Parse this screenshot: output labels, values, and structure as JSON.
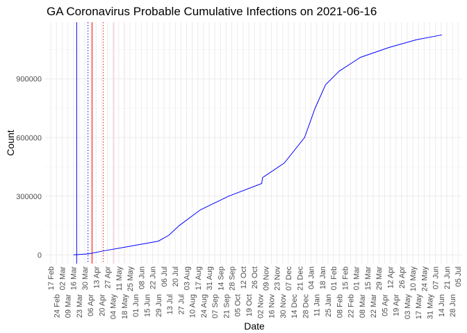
{
  "chart_data": {
    "type": "line",
    "title": "GA Coronavirus Probable Cumulative Infections on 2021-06-16",
    "xlabel": "Date",
    "ylabel": "Count",
    "xlim": [
      "2020-02-10",
      "2021-07-10"
    ],
    "ylim": [
      -45000,
      1190000
    ],
    "yticks": [
      0,
      300000,
      600000,
      900000
    ],
    "ytick_labels": [
      "0",
      "300000",
      "600000",
      "900000"
    ],
    "grid": true,
    "xtick_start": "2020-02-17",
    "xtick_count": 73,
    "xtick_interval_days": 7,
    "series": [
      {
        "name": "cumulative",
        "color": "#0000ff",
        "points": [
          [
            "2020-03-16",
            0
          ],
          [
            "2020-04-04",
            5000
          ],
          [
            "2020-04-22",
            20000
          ],
          [
            "2020-05-17",
            38000
          ],
          [
            "2020-06-29",
            70000
          ],
          [
            "2020-07-12",
            100000
          ],
          [
            "2020-07-25",
            150000
          ],
          [
            "2020-08-20",
            230000
          ],
          [
            "2020-09-24",
            300000
          ],
          [
            "2020-11-04",
            365000
          ],
          [
            "2020-11-05",
            395000
          ],
          [
            "2020-12-02",
            470000
          ],
          [
            "2020-12-27",
            600000
          ],
          [
            "2021-01-09",
            750000
          ],
          [
            "2021-01-22",
            870000
          ],
          [
            "2021-02-08",
            940000
          ],
          [
            "2021-03-06",
            1010000
          ],
          [
            "2021-04-10",
            1060000
          ],
          [
            "2021-05-14",
            1100000
          ],
          [
            "2021-06-15",
            1125000
          ]
        ]
      }
    ],
    "vlines": [
      {
        "date": "2020-03-20",
        "color": "#0000ff",
        "style": "solid"
      },
      {
        "date": "2020-04-03",
        "color": "#0000ff",
        "style": "dotted"
      },
      {
        "date": "2020-04-08",
        "color": "#ff0000",
        "style": "solid"
      },
      {
        "date": "2020-04-22",
        "color": "#ff0000",
        "style": "dotted"
      },
      {
        "date": "2020-05-05",
        "color": "#ffc0cb",
        "style": "solid"
      },
      {
        "date": "2020-05-18",
        "color": "#ffc0cb",
        "style": "dotted"
      }
    ]
  }
}
